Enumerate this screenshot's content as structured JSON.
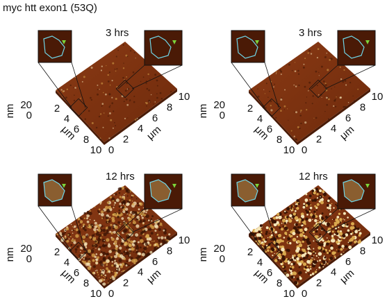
{
  "title": "myc htt exon1 (53Q)",
  "panels": [
    {
      "label": "3 hrs",
      "z_unit": "nm",
      "z_ticks": [
        20,
        0
      ],
      "left_unit": "μm",
      "left_ticks": [
        2,
        4,
        6,
        8,
        10
      ],
      "right_unit": "μm",
      "right_ticks": [
        0,
        2,
        4,
        6,
        8,
        10
      ]
    },
    {
      "label": "3 hrs",
      "z_unit": "nm",
      "z_ticks": [
        20,
        0
      ],
      "left_unit": "μm",
      "left_ticks": [
        2,
        4,
        6,
        8,
        10
      ],
      "right_unit": "μm",
      "right_ticks": [
        0,
        2,
        4,
        6,
        8,
        10
      ]
    },
    {
      "label": "12 hrs",
      "z_unit": "nm",
      "z_ticks": [
        20,
        0
      ],
      "left_unit": "μm",
      "left_ticks": [
        2,
        4,
        6,
        8,
        10
      ],
      "right_unit": "μm",
      "right_ticks": [
        0,
        2,
        4,
        6,
        8,
        10
      ]
    },
    {
      "label": "12 hrs",
      "z_unit": "nm",
      "z_ticks": [
        20,
        0
      ],
      "left_unit": "μm",
      "left_ticks": [
        2,
        4,
        6,
        8,
        10
      ],
      "right_unit": "μm",
      "right_ticks": [
        0,
        2,
        4,
        6,
        8,
        10
      ]
    }
  ]
}
